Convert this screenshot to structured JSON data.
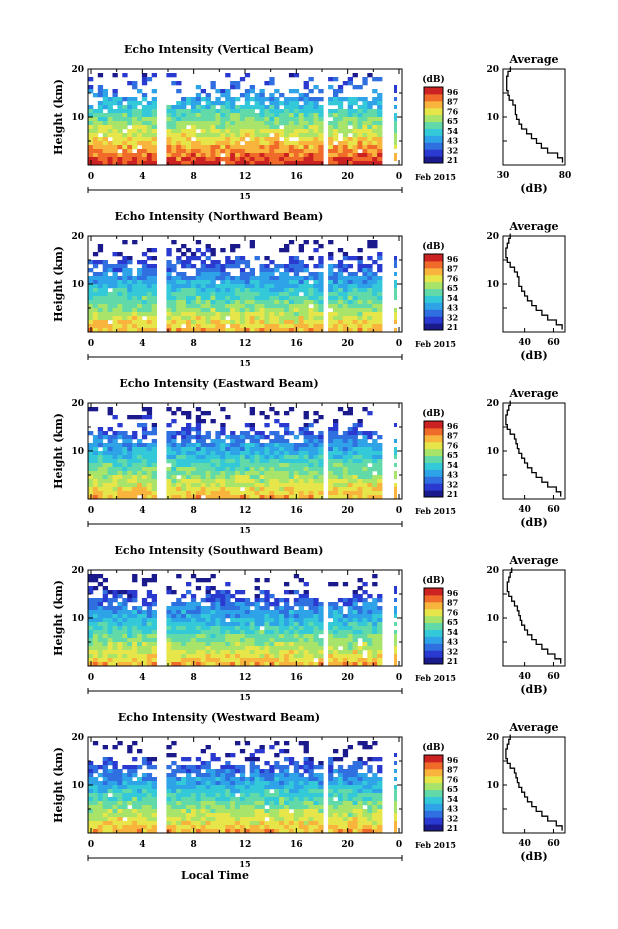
{
  "figure": {
    "xlabel": "Local Time",
    "date_label": "Feb 2015",
    "day_label": "15",
    "ylabel": "Height (km)",
    "cbar_unit": "(dB)",
    "cbar_ticks": [
      "96",
      "87",
      "76",
      "65",
      "54",
      "43",
      "32",
      "21"
    ],
    "colormap": [
      "#1a1a8c",
      "#2a3ad0",
      "#2f6fe0",
      "#2ea3e8",
      "#34c9d8",
      "#62d9a8",
      "#a8e36a",
      "#e6e64a",
      "#f8b43c",
      "#f06a2a",
      "#cc2222"
    ],
    "data_gaps_hours": [
      [
        4.9,
        5.8
      ],
      [
        17.7,
        18.3
      ]
    ],
    "panel_ylim": [
      0,
      20
    ],
    "time_xlim": [
      0,
      24
    ],
    "time_ticks": [
      "0",
      "4",
      "8",
      "12",
      "16",
      "20",
      "0"
    ]
  },
  "chart_data": [
    {
      "type": "heatmap",
      "title": "Echo Intensity (Vertical Beam)",
      "xlabel": "",
      "ylabel": "Height (km)",
      "ylim": [
        0,
        20
      ],
      "yticks": [
        "10",
        "20"
      ],
      "xlim": [
        0,
        24
      ],
      "cbar_ticks": [
        "96",
        "87",
        "76",
        "65",
        "54",
        "43",
        "32",
        "21"
      ],
      "profile": {
        "title": "Average",
        "xlabel": "(dB)",
        "xlim": [
          30,
          80
        ],
        "xticks": [
          "30",
          "80"
        ],
        "heights_km": [
          1,
          2,
          3,
          4,
          5,
          6,
          7,
          8,
          9,
          10,
          11,
          12,
          13,
          14,
          15,
          16,
          17,
          18,
          19,
          20
        ],
        "values_db": [
          78,
          74,
          66,
          61,
          57,
          53,
          49,
          45,
          43,
          41,
          40,
          40,
          38,
          35,
          34,
          33,
          33,
          33,
          34,
          36
        ]
      }
    },
    {
      "type": "heatmap",
      "title": "Echo Intensity (Northward Beam)",
      "xlabel": "",
      "ylabel": "Height (km)",
      "ylim": [
        0,
        20
      ],
      "yticks": [
        "10",
        "20"
      ],
      "xlim": [
        0,
        24
      ],
      "cbar_ticks": [
        "96",
        "87",
        "76",
        "65",
        "54",
        "43",
        "32",
        "21"
      ],
      "profile": {
        "title": "Average",
        "xlabel": "(dB)",
        "xlim": [
          25,
          68
        ],
        "xticks": [
          "40",
          "60"
        ],
        "heights_km": [
          1,
          2,
          3,
          4,
          5,
          6,
          7,
          8,
          9,
          10,
          11,
          12,
          13,
          14,
          15,
          16,
          17,
          18,
          19,
          20
        ],
        "values_db": [
          66,
          62,
          56,
          52,
          48,
          45,
          42,
          40,
          38,
          36,
          36,
          35,
          33,
          30,
          28,
          27,
          27,
          28,
          29,
          30
        ]
      }
    },
    {
      "type": "heatmap",
      "title": "Echo Intensity (Eastward Beam)",
      "xlabel": "",
      "ylabel": "Height (km)",
      "ylim": [
        0,
        20
      ],
      "yticks": [
        "10",
        "20"
      ],
      "xlim": [
        0,
        24
      ],
      "cbar_ticks": [
        "96",
        "87",
        "76",
        "65",
        "54",
        "43",
        "32",
        "21"
      ],
      "profile": {
        "title": "Average",
        "xlabel": "(dB)",
        "xlim": [
          25,
          68
        ],
        "xticks": [
          "40",
          "60"
        ],
        "heights_km": [
          1,
          2,
          3,
          4,
          5,
          6,
          7,
          8,
          9,
          10,
          11,
          12,
          13,
          14,
          15,
          16,
          17,
          18,
          19,
          20
        ],
        "values_db": [
          65,
          62,
          56,
          52,
          48,
          45,
          42,
          40,
          38,
          36,
          35,
          34,
          33,
          30,
          28,
          27,
          27,
          28,
          29,
          30
        ]
      }
    },
    {
      "type": "heatmap",
      "title": "Echo Intensity (Southward Beam)",
      "xlabel": "",
      "ylabel": "Height (km)",
      "ylim": [
        0,
        20
      ],
      "yticks": [
        "10",
        "20"
      ],
      "xlim": [
        0,
        24
      ],
      "cbar_ticks": [
        "96",
        "87",
        "76",
        "65",
        "54",
        "43",
        "32",
        "21"
      ],
      "profile": {
        "title": "Average",
        "xlabel": "(dB)",
        "xlim": [
          25,
          68
        ],
        "xticks": [
          "40",
          "60"
        ],
        "heights_km": [
          1,
          2,
          3,
          4,
          5,
          6,
          7,
          8,
          9,
          10,
          11,
          12,
          13,
          14,
          15,
          16,
          17,
          18,
          19,
          20
        ],
        "values_db": [
          65,
          61,
          56,
          52,
          48,
          45,
          42,
          40,
          38,
          37,
          36,
          35,
          33,
          31,
          29,
          28,
          28,
          29,
          30,
          31
        ]
      }
    },
    {
      "type": "heatmap",
      "title": "Echo Intensity (Westward Beam)",
      "xlabel": "Local Time",
      "ylabel": "Height (km)",
      "ylim": [
        0,
        20
      ],
      "yticks": [
        "10",
        "20"
      ],
      "xlim": [
        0,
        24
      ],
      "cbar_ticks": [
        "96",
        "87",
        "76",
        "65",
        "54",
        "43",
        "32",
        "21"
      ],
      "profile": {
        "title": "Average",
        "xlabel": "(dB)",
        "xlim": [
          25,
          68
        ],
        "xticks": [
          "40",
          "60"
        ],
        "heights_km": [
          1,
          2,
          3,
          4,
          5,
          6,
          7,
          8,
          9,
          10,
          11,
          12,
          13,
          14,
          15,
          16,
          17,
          18,
          19,
          20
        ],
        "values_db": [
          66,
          62,
          56,
          52,
          48,
          45,
          42,
          40,
          38,
          36,
          35,
          34,
          33,
          30,
          28,
          27,
          27,
          28,
          29,
          30
        ]
      }
    }
  ]
}
